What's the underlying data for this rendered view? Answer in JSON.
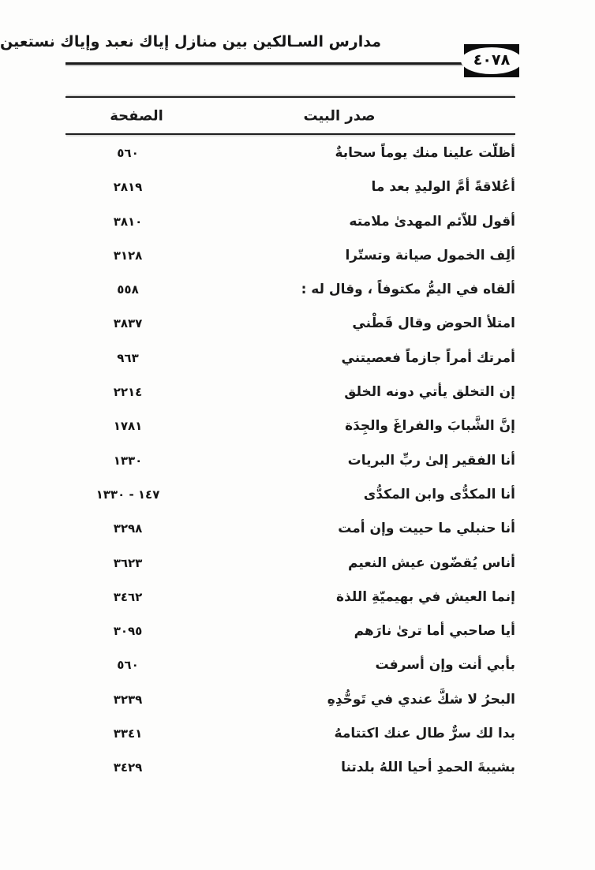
{
  "header": {
    "running_title": "مدارس السـالكين بين منازل إياك نعبد وإياك نستعين",
    "page_number": "٤٠٧٨"
  },
  "table": {
    "headers": {
      "verse": "صدر البيت",
      "page": "الصفحة"
    },
    "rows": [
      {
        "verse": "أظلّت علينا منك يوماً سحابةٌ",
        "page": "٥٦٠"
      },
      {
        "verse": "أعُلاقةً أمَّ الوليدِ بعد ما",
        "page": "٢٨١٩"
      },
      {
        "verse": "أقول للاّئم المهدىٰ ملامته",
        "page": "٣٨١٠"
      },
      {
        "verse": "ألِف الخمول صيانة وتستّرا",
        "page": "٣١٢٨"
      },
      {
        "verse": "ألقاه في اليمُّ مكتوفاً ، وقال له :",
        "page": "٥٥٨"
      },
      {
        "verse": "امتلأ الحوض وقال قَطْني",
        "page": "٣٨٣٧"
      },
      {
        "verse": "أمرتك أمراً جازماً فعصيتني",
        "page": "٩٦٣"
      },
      {
        "verse": "إن التخلق يأتي دونه الخلق",
        "page": "٢٢١٤"
      },
      {
        "verse": "إنَّ الشَّبابَ والفراغَ والجِدَة",
        "page": "١٧٨١"
      },
      {
        "verse": "أنا الفقير إلىٰ ربِّ البريات",
        "page": "١٣٣٠"
      },
      {
        "verse": "أنا المكدُّى وابن المكدُّى",
        "page": "١٤٧ - ١٣٣٠"
      },
      {
        "verse": "أنا حنبلي ما حييت وإن أمت",
        "page": "٣٢٩٨"
      },
      {
        "verse": "أناس يُقضّون عيش النعيم",
        "page": "٣٦٢٣"
      },
      {
        "verse": "إنما العيش في بهيميّةِ اللذة",
        "page": "٣٤٦٢"
      },
      {
        "verse": "أيا صاحبي أما ترىٰ نارَهم",
        "page": "٣٠٩٥"
      },
      {
        "verse": "بأبي أنت وإن أسرفت",
        "page": "٥٦٠"
      },
      {
        "verse": "البحرُ لا شكَّ عندي في تَوحُّدِهِ",
        "page": "٣٢٣٩"
      },
      {
        "verse": "بدا لك سرٌّ طال عنك اكتتامهُ",
        "page": "٣٣٤١"
      },
      {
        "verse": "بشيبةَ الحمدِ أحيا اللهُ بلدتنا",
        "page": "٣٤٢٩"
      }
    ]
  },
  "colors": {
    "ink": "#1a1a1a",
    "paper": "#fdfdfc",
    "badge_background": "#0d0d0d"
  }
}
